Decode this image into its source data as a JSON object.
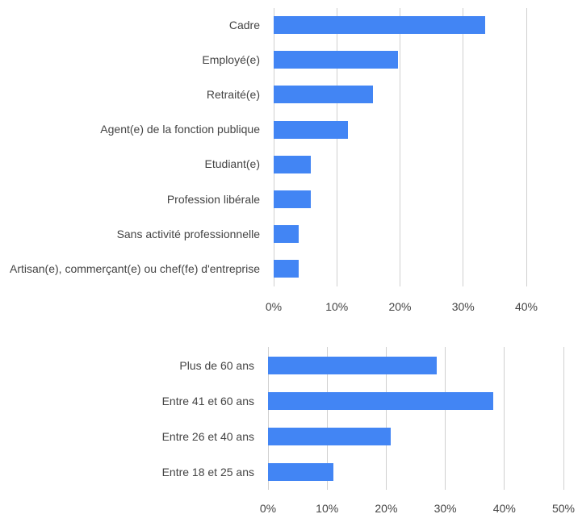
{
  "chart_data": [
    {
      "type": "bar",
      "orientation": "horizontal",
      "categories": [
        "Cadre",
        "Employé(e)",
        "Retraité(e)",
        "Agent(e) de la fonction publique",
        "Etudiant(e)",
        "Profession libérale",
        "Sans activité professionnelle",
        "Artisan(e), commerçant(e) ou chef(fe) d'entreprise"
      ],
      "values": [
        33.5,
        19.7,
        15.7,
        11.8,
        5.9,
        5.9,
        3.9,
        3.9
      ],
      "color": "#4285f4",
      "xlim": [
        0,
        40
      ],
      "xticks": [
        {
          "value": 0,
          "label": "0%"
        },
        {
          "value": 10,
          "label": "10%"
        },
        {
          "value": 20,
          "label": "20%"
        },
        {
          "value": 30,
          "label": "30%"
        },
        {
          "value": 40,
          "label": "40%"
        }
      ],
      "grid": true
    },
    {
      "type": "bar",
      "orientation": "horizontal",
      "categories": [
        "Plus de 60 ans",
        "Entre 41 et 60 ans",
        "Entre 26 et 40 ans",
        "Entre 18 et 25 ans"
      ],
      "values": [
        28.5,
        38.1,
        20.8,
        11.1
      ],
      "color": "#4285f4",
      "xlim": [
        0,
        50
      ],
      "xticks": [
        {
          "value": 0,
          "label": "0%"
        },
        {
          "value": 10,
          "label": "10%"
        },
        {
          "value": 20,
          "label": "20%"
        },
        {
          "value": 30,
          "label": "30%"
        },
        {
          "value": 40,
          "label": "40%"
        },
        {
          "value": 50,
          "label": "50%"
        }
      ],
      "grid": true
    }
  ]
}
